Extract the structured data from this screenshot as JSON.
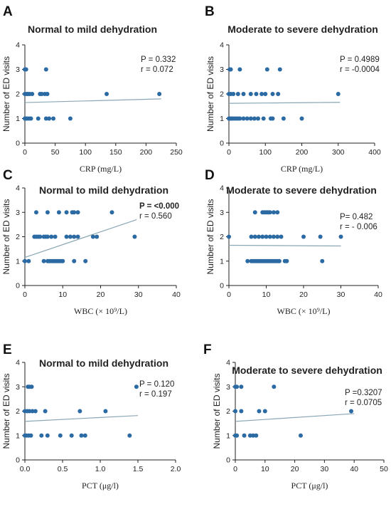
{
  "chart_data": [
    {
      "type": "scatter",
      "panel": "A",
      "title": "Normal to mild dehydration",
      "xlabel": "CRP (mg/L)",
      "ylabel": "Number of ED visits",
      "xlim": [
        0,
        250
      ],
      "ylim": [
        0,
        4
      ],
      "xticks": [
        "0",
        "50",
        "100",
        "150",
        "200",
        "250"
      ],
      "yticks": [
        "0",
        "1",
        "2",
        "3",
        "4"
      ],
      "stats": {
        "p": "P = 0.332",
        "r": "r = 0.072",
        "p_bold": false
      },
      "fit": {
        "x": [
          0,
          225
        ],
        "y": [
          1.65,
          1.8
        ]
      },
      "points": [
        [
          0,
          3
        ],
        [
          2,
          3
        ],
        [
          35,
          3
        ],
        [
          0,
          2
        ],
        [
          3,
          2
        ],
        [
          5,
          2
        ],
        [
          8,
          2
        ],
        [
          12,
          2
        ],
        [
          25,
          2
        ],
        [
          28,
          2
        ],
        [
          33,
          2
        ],
        [
          37,
          2
        ],
        [
          135,
          2
        ],
        [
          222,
          2
        ],
        [
          0,
          1
        ],
        [
          2,
          1
        ],
        [
          4,
          1
        ],
        [
          7,
          1
        ],
        [
          10,
          1
        ],
        [
          22,
          1
        ],
        [
          35,
          1
        ],
        [
          40,
          1
        ],
        [
          47,
          1
        ],
        [
          75,
          1
        ]
      ],
      "grid": false,
      "legend": "none"
    },
    {
      "type": "scatter",
      "panel": "B",
      "title": "Moderate to severe dehydration",
      "xlabel": "CRP (mg/L)",
      "ylabel": "Number of ED visits",
      "xlim": [
        0,
        400
      ],
      "ylim": [
        0,
        4
      ],
      "xticks": [
        "0",
        "100",
        "200",
        "300",
        "400"
      ],
      "yticks": [
        "0",
        "1",
        "2",
        "3",
        "4"
      ],
      "stats": {
        "p": "P = 0.4989",
        "r": "r = -0.0004",
        "p_bold": false
      },
      "fit": {
        "x": [
          0,
          305
        ],
        "y": [
          1.62,
          1.66
        ]
      },
      "points": [
        [
          2,
          3
        ],
        [
          5,
          3
        ],
        [
          30,
          3
        ],
        [
          105,
          3
        ],
        [
          140,
          3
        ],
        [
          0,
          2
        ],
        [
          5,
          2
        ],
        [
          12,
          2
        ],
        [
          25,
          2
        ],
        [
          40,
          2
        ],
        [
          60,
          2
        ],
        [
          75,
          2
        ],
        [
          90,
          2
        ],
        [
          100,
          2
        ],
        [
          120,
          2
        ],
        [
          135,
          2
        ],
        [
          300,
          2
        ],
        [
          0,
          1
        ],
        [
          3,
          1
        ],
        [
          6,
          1
        ],
        [
          10,
          1
        ],
        [
          15,
          1
        ],
        [
          20,
          1
        ],
        [
          25,
          1
        ],
        [
          30,
          1
        ],
        [
          40,
          1
        ],
        [
          50,
          1
        ],
        [
          60,
          1
        ],
        [
          70,
          1
        ],
        [
          80,
          1
        ],
        [
          95,
          1
        ],
        [
          115,
          1
        ],
        [
          120,
          1
        ],
        [
          150,
          1
        ],
        [
          200,
          1
        ]
      ],
      "grid": false,
      "legend": "none"
    },
    {
      "type": "scatter",
      "panel": "C",
      "title": "Normal to mild dehydration",
      "xlabel": "WBC (× 10⁹/L)",
      "ylabel": "Number of ED visits",
      "xlim": [
        0,
        40
      ],
      "ylim": [
        0,
        4
      ],
      "xticks": [
        "0",
        "10",
        "20",
        "30",
        "40"
      ],
      "yticks": [
        "0",
        "1",
        "2",
        "3",
        "4"
      ],
      "stats": {
        "p": "P = <0.000",
        "r": "r = 0.560",
        "p_bold": true
      },
      "fit": {
        "x": [
          0,
          29.5
        ],
        "y": [
          1.15,
          2.7
        ]
      },
      "points": [
        [
          3,
          3
        ],
        [
          6,
          3
        ],
        [
          9,
          3
        ],
        [
          11,
          3
        ],
        [
          12.5,
          3
        ],
        [
          13,
          3
        ],
        [
          14,
          3
        ],
        [
          23,
          3
        ],
        [
          2.5,
          2
        ],
        [
          3,
          2
        ],
        [
          3.5,
          2
        ],
        [
          4,
          2
        ],
        [
          5,
          2
        ],
        [
          5.5,
          2
        ],
        [
          6,
          2
        ],
        [
          7,
          2
        ],
        [
          8,
          2
        ],
        [
          11,
          2
        ],
        [
          12,
          2
        ],
        [
          13,
          2
        ],
        [
          14,
          2
        ],
        [
          18,
          2
        ],
        [
          19,
          2
        ],
        [
          29,
          2
        ],
        [
          0,
          1
        ],
        [
          1,
          1
        ],
        [
          5,
          1
        ],
        [
          6,
          1
        ],
        [
          6.5,
          1
        ],
        [
          7,
          1
        ],
        [
          7.5,
          1
        ],
        [
          8,
          1
        ],
        [
          8.5,
          1
        ],
        [
          9,
          1
        ],
        [
          9.5,
          1
        ],
        [
          10,
          1
        ],
        [
          13,
          1
        ],
        [
          16,
          1
        ]
      ],
      "grid": false,
      "legend": "none"
    },
    {
      "type": "scatter",
      "panel": "D",
      "title": "Moderate to severe dehydration",
      "xlabel": "WBC (× 10⁹/L)",
      "ylabel": "Number of ED visits",
      "xlim": [
        0,
        40
      ],
      "ylim": [
        0,
        4
      ],
      "xticks": [
        "0",
        "10",
        "20",
        "30",
        "40"
      ],
      "yticks": [
        "0",
        "1",
        "2",
        "3",
        "4"
      ],
      "stats": {
        "p": "P= 0.482",
        "r": "r = - 0.006",
        "p_bold": false
      },
      "fit": {
        "x": [
          0,
          30
        ],
        "y": [
          1.65,
          1.62
        ]
      },
      "points": [
        [
          7,
          3
        ],
        [
          9,
          3
        ],
        [
          9.5,
          3
        ],
        [
          10,
          3
        ],
        [
          10.5,
          3
        ],
        [
          11,
          3
        ],
        [
          12,
          3
        ],
        [
          13,
          3
        ],
        [
          0,
          2
        ],
        [
          6,
          2
        ],
        [
          7,
          2
        ],
        [
          8,
          2
        ],
        [
          9,
          2
        ],
        [
          10,
          2
        ],
        [
          11,
          2
        ],
        [
          12,
          2
        ],
        [
          13,
          2
        ],
        [
          14,
          2
        ],
        [
          20,
          2
        ],
        [
          24.5,
          2
        ],
        [
          30,
          2
        ],
        [
          5,
          1
        ],
        [
          6,
          1
        ],
        [
          6.5,
          1
        ],
        [
          7,
          1
        ],
        [
          7.5,
          1
        ],
        [
          8,
          1
        ],
        [
          8.5,
          1
        ],
        [
          9,
          1
        ],
        [
          9.5,
          1
        ],
        [
          10,
          1
        ],
        [
          10.5,
          1
        ],
        [
          11,
          1
        ],
        [
          11.5,
          1
        ],
        [
          12,
          1
        ],
        [
          12.5,
          1
        ],
        [
          13,
          1
        ],
        [
          13.5,
          1
        ],
        [
          15,
          1
        ],
        [
          15.5,
          1
        ],
        [
          25,
          1
        ]
      ],
      "grid": false,
      "legend": "none"
    },
    {
      "type": "scatter",
      "panel": "E",
      "title": "Normal to mild dehydration",
      "xlabel": "PCT (μg/l)",
      "ylabel": "Number of ED visits",
      "xlim": [
        0,
        2.0
      ],
      "ylim": [
        0,
        4
      ],
      "xticks": [
        "0.0",
        "0.5",
        "1.0",
        "1.5",
        "2.0"
      ],
      "yticks": [
        "0",
        "1",
        "2",
        "3",
        "4"
      ],
      "stats": {
        "p": "P = 0.120",
        "r": "r = 0.197",
        "p_bold": false
      },
      "fit": {
        "x": [
          0,
          1.5
        ],
        "y": [
          1.58,
          1.82
        ]
      },
      "points": [
        [
          0.04,
          3
        ],
        [
          0.06,
          3
        ],
        [
          0.09,
          3
        ],
        [
          1.48,
          3
        ],
        [
          0.0,
          2
        ],
        [
          0.03,
          2
        ],
        [
          0.06,
          2
        ],
        [
          0.1,
          2
        ],
        [
          0.14,
          2
        ],
        [
          0.27,
          2
        ],
        [
          0.73,
          2
        ],
        [
          1.07,
          2
        ],
        [
          0.0,
          1
        ],
        [
          0.02,
          1
        ],
        [
          0.05,
          1
        ],
        [
          0.08,
          1
        ],
        [
          0.22,
          1
        ],
        [
          0.3,
          1
        ],
        [
          0.47,
          1
        ],
        [
          0.62,
          1
        ],
        [
          0.75,
          1
        ],
        [
          0.8,
          1
        ],
        [
          1.39,
          1
        ]
      ],
      "grid": false,
      "legend": "none"
    },
    {
      "type": "scatter",
      "panel": "F",
      "title": "Moderate to severe dehydration",
      "xlabel": "PCT (μg/l)",
      "ylabel": "Number of ED visits",
      "xlim": [
        0,
        50
      ],
      "ylim": [
        0,
        4
      ],
      "xticks": [
        "0",
        "10",
        "20",
        "30",
        "40",
        "50"
      ],
      "yticks": [
        "0",
        "1",
        "2",
        "3",
        "4"
      ],
      "stats": {
        "p": "P =0.3207",
        "r": "r = 0.0705",
        "p_bold": false
      },
      "fit": {
        "x": [
          0,
          40
        ],
        "y": [
          1.58,
          1.9
        ]
      },
      "points": [
        [
          0,
          3
        ],
        [
          0.5,
          3
        ],
        [
          2,
          3
        ],
        [
          13,
          3
        ],
        [
          0,
          2
        ],
        [
          2,
          2
        ],
        [
          8,
          2
        ],
        [
          10,
          2
        ],
        [
          39,
          2
        ],
        [
          0,
          1
        ],
        [
          0.5,
          1
        ],
        [
          3,
          1
        ],
        [
          5,
          1
        ],
        [
          6,
          1
        ],
        [
          7,
          1
        ],
        [
          22,
          1
        ]
      ],
      "grid": false,
      "legend": "none"
    }
  ]
}
